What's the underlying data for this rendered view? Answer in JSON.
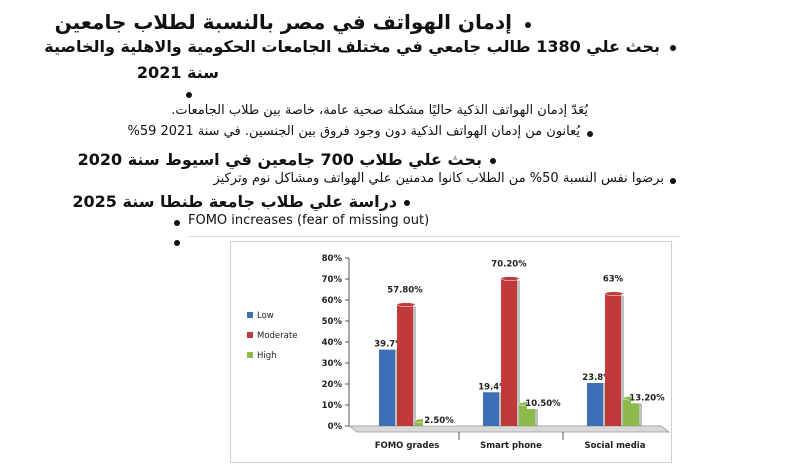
{
  "title": "إدمان الهواتف في مصر بالنسبة لطلاب جامعين",
  "section1": {
    "heading_line1": "بحث علي 1380 طالب جامعي في مختلف الجامعات الحكومية والاهلية والخاصية",
    "heading_line2": "سنة 2021",
    "note": "يُعَدّ إدمان الهواتف الذكية حاليًا مشكلة صحية عامة، خاصة بين طلاب الجامعات.",
    "item": "يُعانون من إدمان الهواتف الذكية دون وجود فروق بين الجنسين. في سنة 2021 59%"
  },
  "section2": {
    "heading": "بحث علي طلاب 700 جامعين في اسيوط سنة 2020",
    "item": "برضوا نفس النسبة 50% من الطلاب كانوا مدمنين علي الهواتف ومشاكل نوم وتركيز"
  },
  "section3": {
    "heading": "دراسة علي طلاب جامعة طنطا سنة 2025",
    "item": "FOMO increases (fear of missing out)"
  },
  "chart_data": {
    "type": "bar",
    "categories": [
      "FOMO grades",
      "Smart phone",
      "Social media"
    ],
    "series": [
      {
        "name": "Low",
        "values": [
          39.7,
          19.4,
          23.8
        ],
        "color": "#3b6fb6"
      },
      {
        "name": "Moderate",
        "values": [
          57.8,
          70.2,
          63
        ],
        "color": "#c0393b"
      },
      {
        "name": "High",
        "values": [
          2.5,
          10.5,
          13.2
        ],
        "color": "#8db84a"
      }
    ],
    "data_labels": [
      [
        "39.7%",
        "57.80%",
        "2.50%"
      ],
      [
        "19.4%",
        "70.20%",
        "10.50%"
      ],
      [
        "23.8%",
        "63%",
        "13.20%"
      ]
    ],
    "yticks": [
      "0%",
      "10%",
      "20%",
      "30%",
      "40%",
      "50%",
      "60%",
      "70%",
      "80%"
    ],
    "ylim": [
      0,
      80
    ],
    "legend_position": "left",
    "grid": false
  }
}
